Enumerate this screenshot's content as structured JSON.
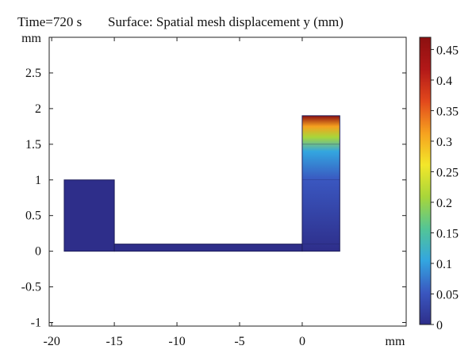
{
  "header": {
    "time_label": "Time=720 s",
    "surface_label": "Surface: Spatial mesh displacement y (mm)"
  },
  "chart_data": {
    "type": "heatmap",
    "title": "Surface: Spatial mesh displacement y (mm)",
    "time": "Time=720 s",
    "x_unit": "mm",
    "y_unit": "mm",
    "xlim": [
      -20.2,
      8.3
    ],
    "ylim": [
      -1.05,
      3.0
    ],
    "x_ticks": [
      -20,
      -15,
      -10,
      -5,
      0
    ],
    "x_tick_labels": [
      "-20",
      "-15",
      "-10",
      "-5",
      "0"
    ],
    "y_ticks": [
      -1,
      -0.5,
      0,
      0.5,
      1,
      1.5,
      2,
      2.5
    ],
    "y_tick_labels": [
      "-1",
      "-0.5",
      "0",
      "0.5",
      "1",
      "1.5",
      "2",
      "2.5"
    ],
    "domains": [
      {
        "name": "left-block",
        "x": [
          -19,
          -15
        ],
        "y": [
          0,
          1
        ],
        "value": 0.0
      },
      {
        "name": "bottom-channel",
        "x": [
          -15,
          0
        ],
        "y": [
          0,
          0.1
        ],
        "value": 0.0
      },
      {
        "name": "right-column",
        "x": [
          0,
          3
        ],
        "y": [
          0,
          1.9
        ],
        "gradient": [
          [
            0,
            0.0
          ],
          [
            1.0,
            0.03
          ],
          [
            1.4,
            0.1
          ],
          [
            1.6,
            0.2
          ],
          [
            1.75,
            0.3
          ],
          [
            1.9,
            0.47
          ]
        ]
      }
    ],
    "colorbar": {
      "min": 0,
      "max": 0.47,
      "ticks": [
        0,
        0.05,
        0.1,
        0.15,
        0.2,
        0.25,
        0.3,
        0.35,
        0.4,
        0.45
      ],
      "tick_labels": [
        "0",
        "0.05",
        "0.1",
        "0.15",
        "0.2",
        "0.25",
        "0.3",
        "0.35",
        "0.4",
        "0.45"
      ]
    },
    "colors": {
      "base": "#2f2f8c",
      "scale": [
        "#2e2e8a",
        "#3a57c0",
        "#33a6e0",
        "#53c596",
        "#a8d63a",
        "#f3e72a",
        "#f6a11f",
        "#e2481c",
        "#b21818",
        "#8c1010"
      ]
    }
  }
}
